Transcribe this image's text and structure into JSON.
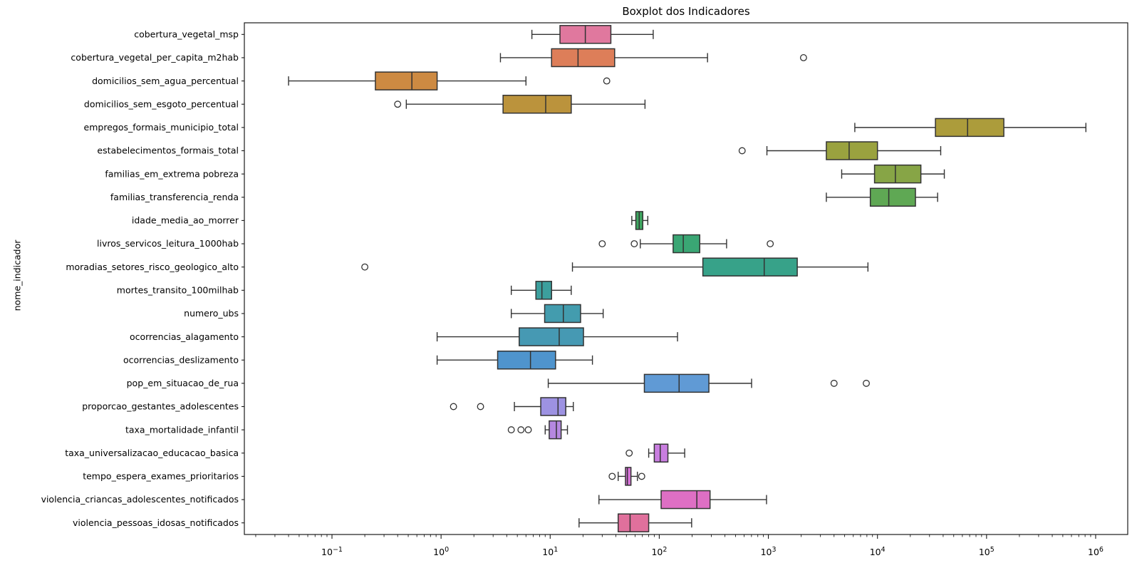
{
  "figure": {
    "title": "Boxplot dos Indicadores",
    "y_axis_title": "nome_indicador"
  },
  "chart_data": {
    "type": "boxplot",
    "orientation": "horizontal",
    "title": "Boxplot dos Indicadores",
    "xlabel": "",
    "ylabel": "nome_indicador",
    "x_scale": "log10",
    "x_tick_exponents": [
      -1,
      0,
      1,
      2,
      3,
      4,
      5,
      6
    ],
    "xlim": [
      0.016,
      1970000
    ],
    "grid": false,
    "legend": "none",
    "box_edge_color": "#333333",
    "rows": [
      {
        "label": "cobertura_vegetal_msp",
        "color": "#e0789e",
        "whisker_low": 6.8,
        "q1": 12.3,
        "median": 21,
        "q3": 36,
        "whisker_high": 88,
        "outliers": []
      },
      {
        "label": "cobertura_vegetal_per_capita_m2hab",
        "color": "#dd7e59",
        "whisker_low": 3.5,
        "q1": 10.3,
        "median": 18,
        "q3": 39,
        "whisker_high": 277,
        "outliers": [
          2100
        ]
      },
      {
        "label": "domicilios_sem_agua_percentual",
        "color": "#cd8a42",
        "whisker_low": 0.04,
        "q1": 0.25,
        "median": 0.54,
        "q3": 0.92,
        "whisker_high": 6.0,
        "outliers": [
          33
        ]
      },
      {
        "label": "domicilios_sem_esgoto_percentual",
        "color": "#bb933c",
        "whisker_low": 0.48,
        "q1": 3.7,
        "median": 9.1,
        "q3": 15.6,
        "whisker_high": 74,
        "outliers": [
          0.4
        ]
      },
      {
        "label": "empregos_formais_municipio_total",
        "color": "#ac9c3b",
        "whisker_low": 6200,
        "q1": 34000,
        "median": 67000,
        "q3": 144000,
        "whisker_high": 814000,
        "outliers": []
      },
      {
        "label": "estabelecimentos_formais_total",
        "color": "#9aa23f",
        "whisker_low": 970,
        "q1": 3400,
        "median": 5500,
        "q3": 10000,
        "whisker_high": 38000,
        "outliers": [
          575
        ]
      },
      {
        "label": "familias_em_extrema pobreza",
        "color": "#87a546",
        "whisker_low": 4700,
        "q1": 9400,
        "median": 14600,
        "q3": 25000,
        "whisker_high": 41000,
        "outliers": []
      },
      {
        "label": "familias_transferencia_renda",
        "color": "#5fa854",
        "whisker_low": 3400,
        "q1": 8600,
        "median": 12700,
        "q3": 22300,
        "whisker_high": 35600,
        "outliers": []
      },
      {
        "label": "idade_media_ao_morrer",
        "color": "#3fa761",
        "whisker_low": 56,
        "q1": 61,
        "median": 65.5,
        "q3": 70.6,
        "whisker_high": 78.5,
        "outliers": []
      },
      {
        "label": "livros_servicos_leitura_1000hab",
        "color": "#3aa674",
        "whisker_low": 67,
        "q1": 134,
        "median": 166,
        "q3": 235,
        "whisker_high": 414,
        "outliers": [
          30,
          59,
          1040
        ]
      },
      {
        "label": "moradias_setores_risco_geologico_alto",
        "color": "#37a289",
        "whisker_low": 16,
        "q1": 251,
        "median": 916,
        "q3": 1840,
        "whisker_high": 8180,
        "outliers": [
          0.2
        ]
      },
      {
        "label": "mortes_transito_100milhab",
        "color": "#3c9f9d",
        "whisker_low": 4.4,
        "q1": 7.4,
        "median": 8.4,
        "q3": 10.3,
        "whisker_high": 15.6,
        "outliers": []
      },
      {
        "label": "numero_ubs",
        "color": "#439cae",
        "whisker_low": 4.4,
        "q1": 8.9,
        "median": 13.2,
        "q3": 19,
        "whisker_high": 30.6,
        "outliers": []
      },
      {
        "label": "ocorrencias_alagamento",
        "color": "#4699b3",
        "whisker_low": 0.92,
        "q1": 5.2,
        "median": 12.1,
        "q3": 20.2,
        "whisker_high": 147,
        "outliers": []
      },
      {
        "label": "ocorrencias_deslizamento",
        "color": "#4f94cd",
        "whisker_low": 0.92,
        "q1": 3.3,
        "median": 6.6,
        "q3": 11.2,
        "whisker_high": 24.4,
        "outliers": []
      },
      {
        "label": "pop_em_situacao_de_rua",
        "color": "#609ad5",
        "whisker_low": 9.6,
        "q1": 73,
        "median": 152,
        "q3": 285,
        "whisker_high": 702,
        "outliers": [
          4000,
          7900
        ]
      },
      {
        "label": "proporcao_gestantes_adolescentes",
        "color": "#9d92e2",
        "whisker_low": 4.7,
        "q1": 8.2,
        "median": 11.8,
        "q3": 13.9,
        "whisker_high": 16.3,
        "outliers": [
          1.3,
          2.3
        ]
      },
      {
        "label": "taxa_mortalidade_infantil",
        "color": "#b588e0",
        "whisker_low": 9.0,
        "q1": 9.8,
        "median": 11.4,
        "q3": 12.6,
        "whisker_high": 14.4,
        "outliers": [
          4.4,
          5.4,
          6.3
        ]
      },
      {
        "label": "taxa_universalizacao_educacao_basica",
        "color": "#c97ee0",
        "whisker_low": 80,
        "q1": 90,
        "median": 102,
        "q3": 120,
        "whisker_high": 171,
        "outliers": [
          53
        ]
      },
      {
        "label": "tempo_espera_exames_prioritarios",
        "color": "#d973da",
        "whisker_low": 42,
        "q1": 49,
        "median": 51,
        "q3": 55,
        "whisker_high": 63,
        "outliers": [
          37,
          69
        ]
      },
      {
        "label": "violencia_criancas_adolescentes_notificados",
        "color": "#de6fc4",
        "whisker_low": 28,
        "q1": 104,
        "median": 221,
        "q3": 292,
        "whisker_high": 962,
        "outliers": []
      },
      {
        "label": "violencia_pessoas_idosas_notificados",
        "color": "#e0709c",
        "whisker_low": 18.4,
        "q1": 42,
        "median": 54,
        "q3": 80,
        "whisker_high": 198,
        "outliers": []
      }
    ]
  }
}
